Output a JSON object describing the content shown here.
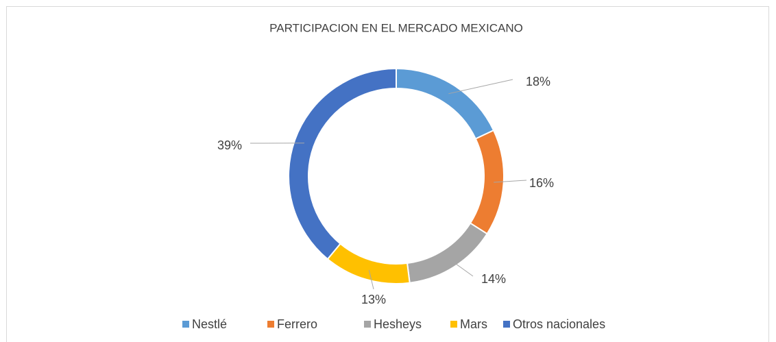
{
  "chart_data": {
    "type": "donut",
    "title": "PARTICIPACION EN EL MERCADO MEXICANO",
    "categories": [
      "Nestlé",
      "Ferrero",
      "Hesheys",
      "Mars",
      "Otros nacionales"
    ],
    "values": [
      18,
      16,
      14,
      13,
      39
    ],
    "value_labels": [
      "18%",
      "16%",
      "14%",
      "13%",
      "39%"
    ],
    "colors": [
      "#5b9bd5",
      "#ed7d31",
      "#a5a5a5",
      "#ffc000",
      "#4472c4"
    ],
    "legend": "bottom"
  }
}
